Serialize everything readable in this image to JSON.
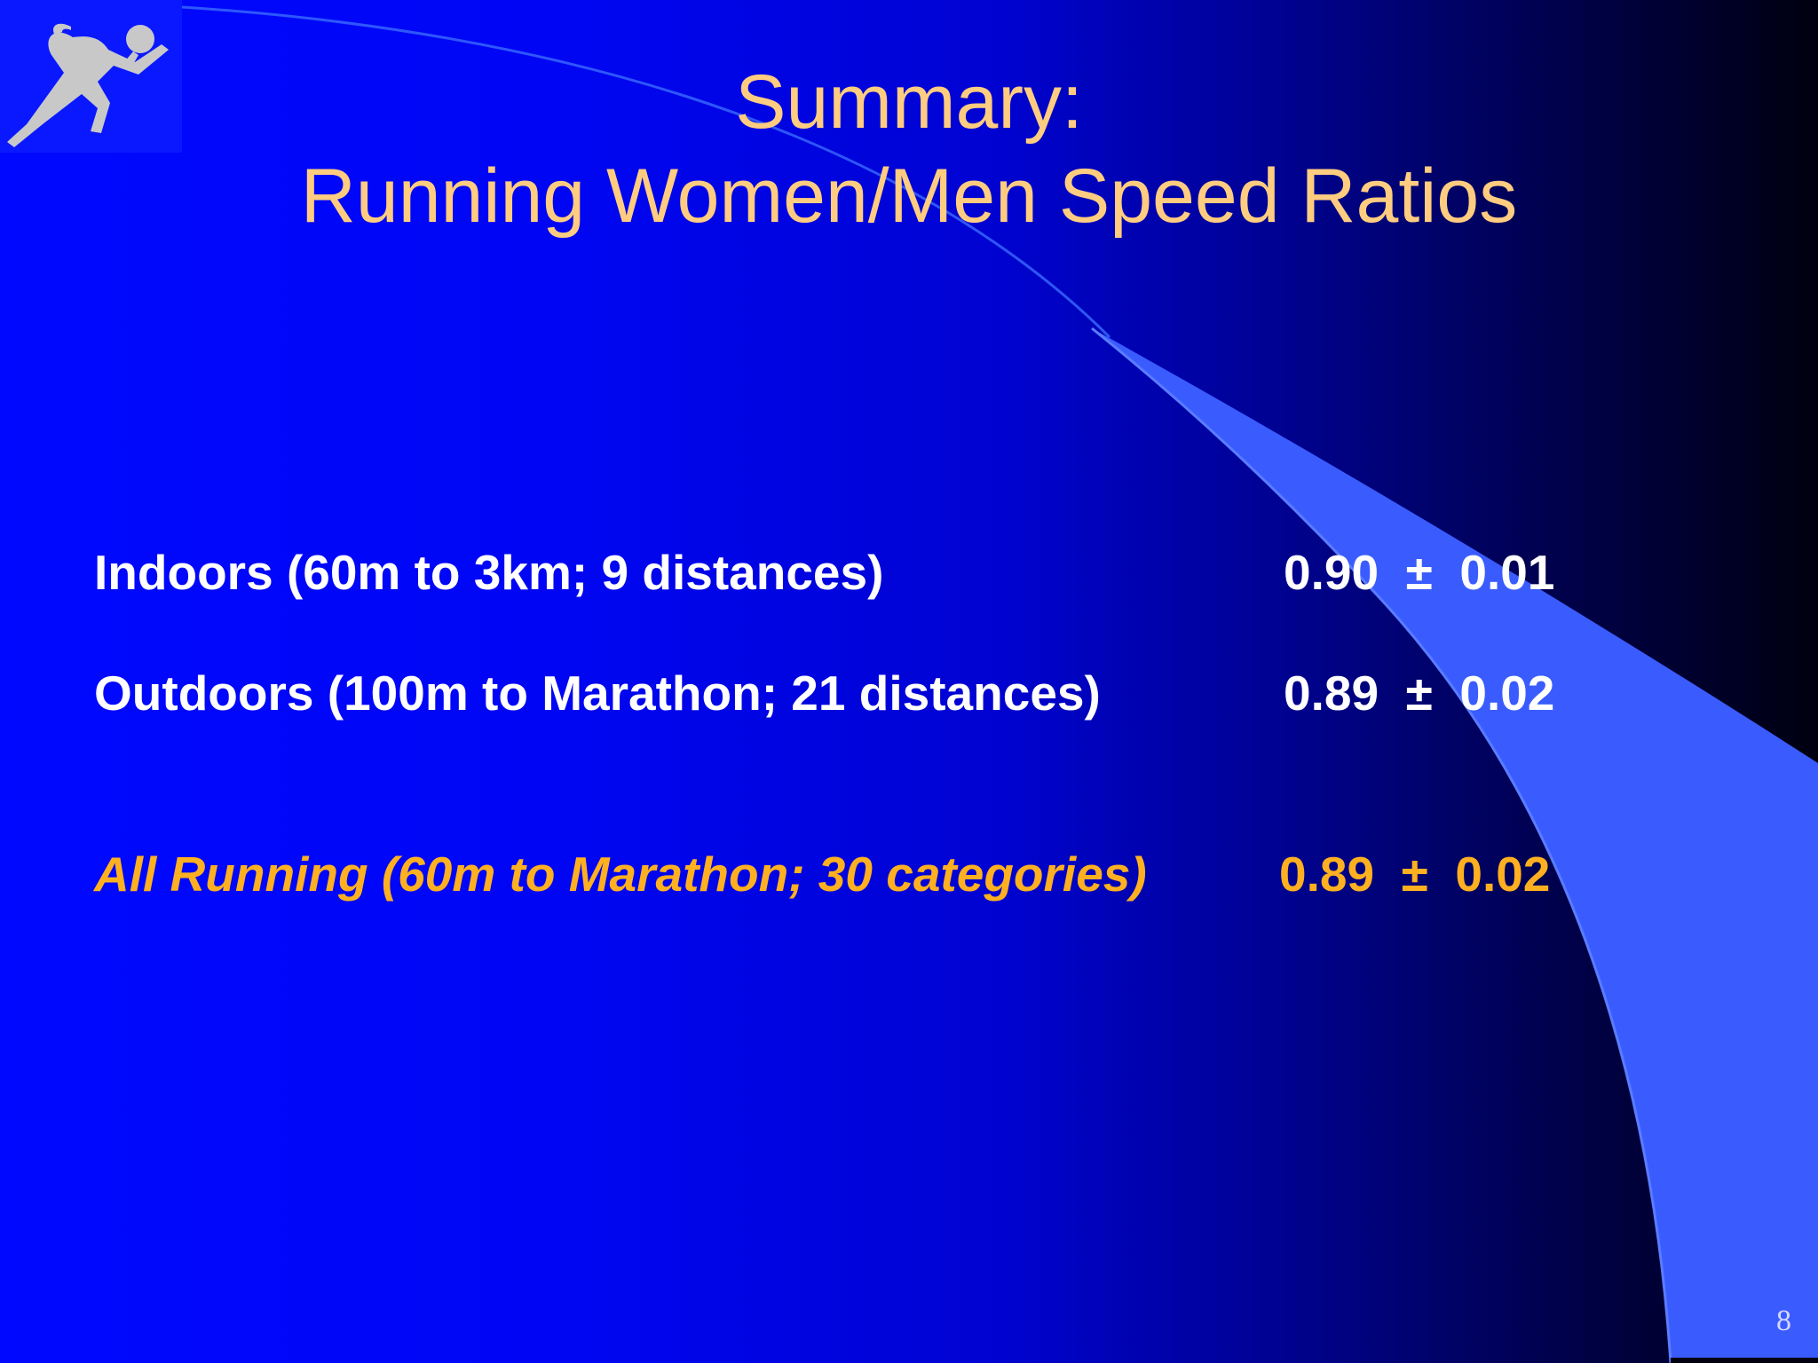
{
  "title": {
    "line1": "Summary:",
    "line2": "Running Women/Men Speed Ratios"
  },
  "rows": [
    {
      "label": "Indoors (60m to 3km; 9 distances)",
      "value": "0.90  ±  0.01"
    },
    {
      "label": "Outdoors (100m to Marathon;  21 distances)",
      "value": "0.89  ±  0.02"
    },
    {
      "label": "All  Running (60m to Marathon;  30 categories)",
      "value": "0.89  ±  0.02"
    }
  ],
  "page_number": "8",
  "logo_icon": "runner-icon",
  "colors": {
    "title": "#ffcc80",
    "body_text": "#ffffff",
    "highlight_text": "#ffb020",
    "background_left": "#0008ff",
    "background_right": "#000010",
    "swoosh": "#3a5cff"
  }
}
